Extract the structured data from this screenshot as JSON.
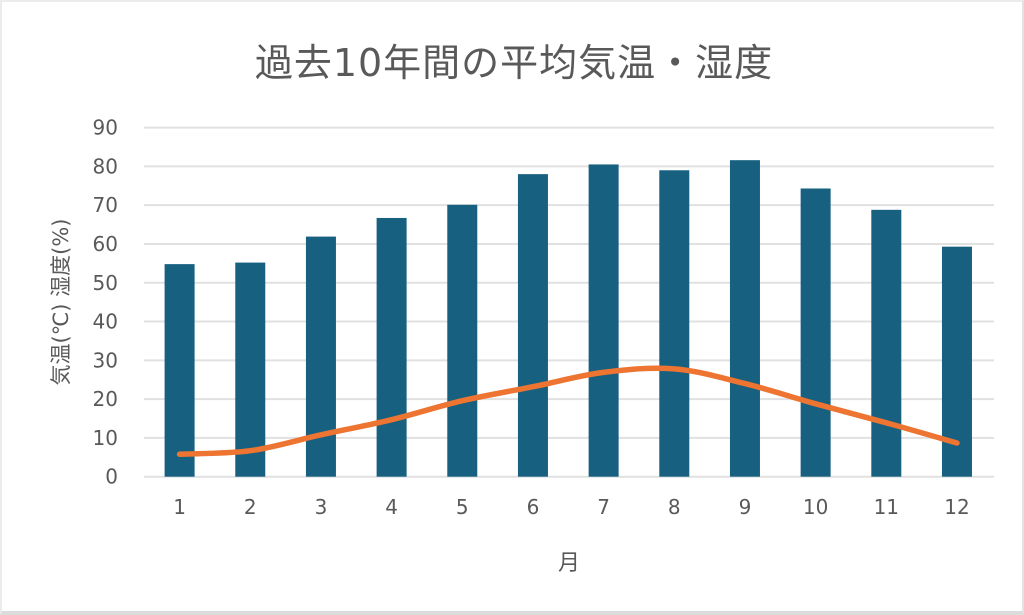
{
  "chart_data": {
    "type": "combo-bar-line",
    "title": "過去10年間の平均気温・湿度",
    "xlabel": "月",
    "ylabel": "気温(℃) 湿度(%)",
    "categories": [
      "1",
      "2",
      "3",
      "4",
      "5",
      "6",
      "7",
      "8",
      "9",
      "10",
      "11",
      "12"
    ],
    "series": [
      {
        "name": "湿度(%)",
        "type": "bar",
        "color": "#176080",
        "values": [
          54.8,
          55.2,
          61.9,
          66.7,
          70.1,
          78.0,
          80.5,
          79.0,
          81.6,
          74.3,
          68.8,
          59.3
        ]
      },
      {
        "name": "気温(℃)",
        "type": "line",
        "color": "#ED7431",
        "values": [
          5.8,
          6.7,
          10.8,
          14.7,
          19.6,
          23.2,
          26.9,
          27.8,
          24.0,
          18.8,
          13.9,
          8.7
        ]
      }
    ],
    "ylim": [
      0,
      90
    ],
    "yticks": [
      0,
      10,
      20,
      30,
      40,
      50,
      60,
      70,
      80,
      90
    ],
    "grid": true,
    "legend": "none",
    "colors": {
      "grid": "#e1e1e1",
      "axis_text": "#595959",
      "title_text": "#595959"
    }
  }
}
